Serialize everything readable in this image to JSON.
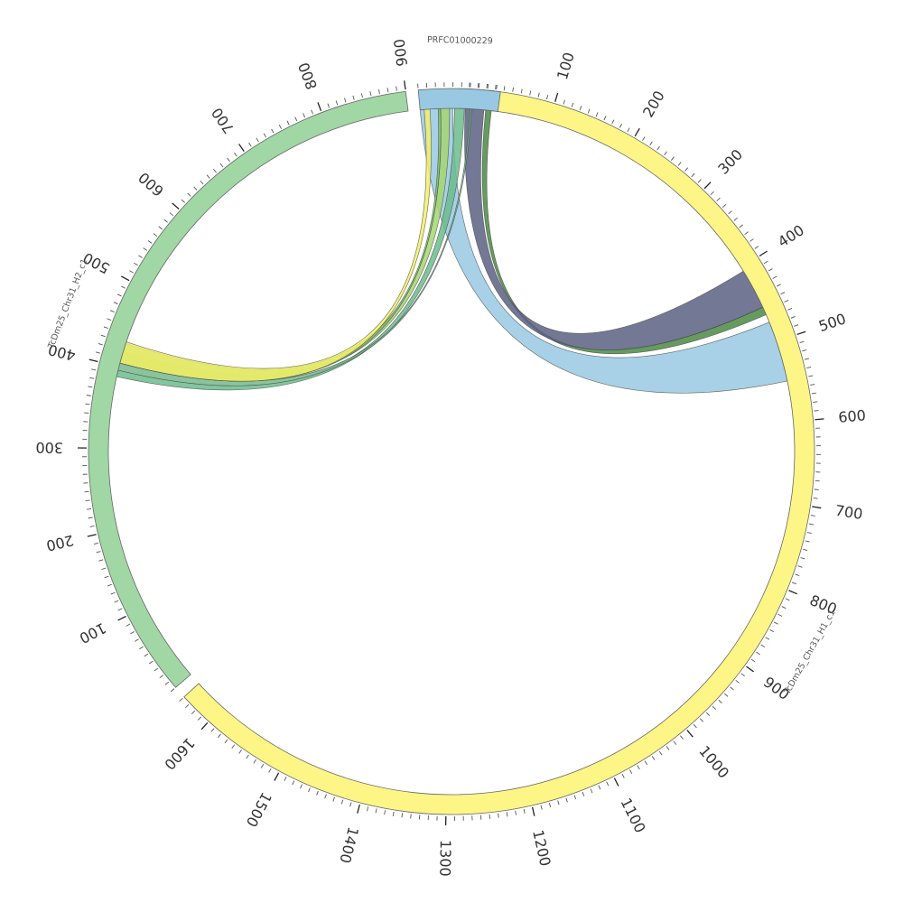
{
  "chart_data": {
    "type": "chord",
    "title": "",
    "segments": [
      {
        "id": "h1",
        "name": "TcDm25_Chr31_H1_c1",
        "length": 1640,
        "color": "#fef587",
        "label_at": 850,
        "major_ticks": [
          "100",
          "200",
          "300",
          "400",
          "500",
          "600",
          "700",
          "800",
          "900",
          "1000",
          "1100",
          "1200",
          "1300",
          "1400",
          "1500",
          "1600"
        ]
      },
      {
        "id": "h2",
        "name": "TcDm25_Chr31_H2_c1",
        "length": 900,
        "color": "#a1d6a5",
        "label_at": 450,
        "major_ticks": [
          "100",
          "200",
          "300",
          "400",
          "500",
          "600",
          "700",
          "800",
          "900"
        ]
      },
      {
        "id": "prfc",
        "name": "PRFC01000229",
        "length": 95,
        "color": "#99c8e2",
        "label_at": 47,
        "major_ticks": []
      }
    ],
    "links": [
      {
        "from": {
          "seg": "prfc",
          "start": 0,
          "end": 40
        },
        "to": {
          "seg": "h1",
          "start": 475,
          "end": 550
        },
        "color": "#99c8e2"
      },
      {
        "from": {
          "seg": "prfc",
          "start": 80,
          "end": 87
        },
        "to": {
          "seg": "h1",
          "start": 455,
          "end": 465
        },
        "color": "#4b8a44"
      },
      {
        "from": {
          "seg": "prfc",
          "start": 55,
          "end": 78
        },
        "to": {
          "seg": "h1",
          "start": 405,
          "end": 455
        },
        "color": "#5a6083"
      },
      {
        "from": {
          "seg": "prfc",
          "start": 42,
          "end": 54
        },
        "to": {
          "seg": "h2",
          "start": 388,
          "end": 396
        },
        "color": "#6bbc8c"
      },
      {
        "from": {
          "seg": "prfc",
          "start": 61,
          "end": 63
        },
        "to": {
          "seg": "h2",
          "start": 396,
          "end": 405
        },
        "color": "#75b98c"
      },
      {
        "from": {
          "seg": "prfc",
          "start": 25,
          "end": 36
        },
        "to": {
          "seg": "h2",
          "start": 408,
          "end": 418
        },
        "color": "#a4d670"
      },
      {
        "from": {
          "seg": "prfc",
          "start": 22,
          "end": 25
        },
        "to": {
          "seg": "h2",
          "start": 405,
          "end": 430
        },
        "color": "#7cc16b"
      },
      {
        "from": {
          "seg": "prfc",
          "start": 5,
          "end": 12
        },
        "to": {
          "seg": "h2",
          "start": 405,
          "end": 432
        },
        "color": "#f3f06a"
      }
    ]
  }
}
